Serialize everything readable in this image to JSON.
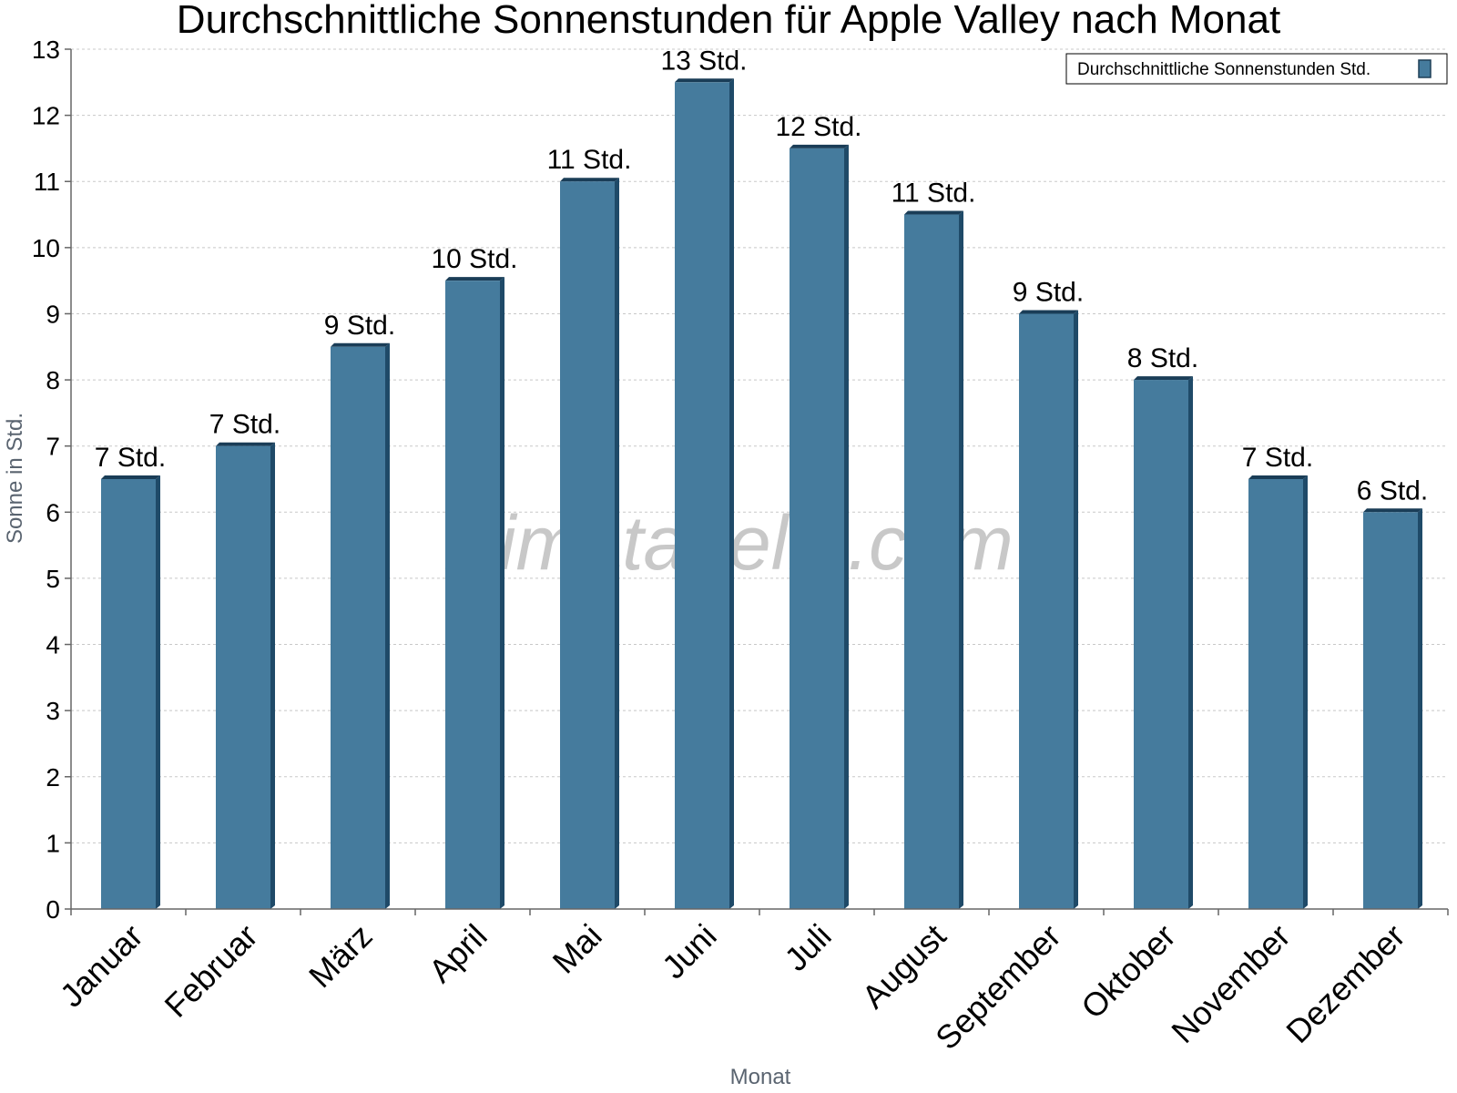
{
  "chart_data": {
    "type": "bar",
    "title": "Durchschnittliche Sonnenstunden für Apple Valley nach Monat",
    "xlabel": "Monat",
    "ylabel": "Sonne in Std.",
    "ylim": [
      0,
      13
    ],
    "yticks": [
      0,
      1,
      2,
      3,
      4,
      5,
      6,
      7,
      8,
      9,
      10,
      11,
      12,
      13
    ],
    "grid": true,
    "legend_position": "top-right",
    "categories": [
      "Januar",
      "Februar",
      "März",
      "April",
      "Mai",
      "Juni",
      "Juli",
      "August",
      "September",
      "Oktober",
      "November",
      "Dezember"
    ],
    "series": [
      {
        "name": "Durchschnittliche Sonnenstunden Std.",
        "color": "#457b9d",
        "values": [
          6.5,
          7,
          8.5,
          9.5,
          11,
          12.5,
          11.5,
          10.5,
          9,
          8,
          6.5,
          6
        ],
        "data_labels": [
          "7 Std.",
          "7 Std.",
          "9 Std.",
          "10 Std.",
          "11 Std.",
          "13 Std.",
          "12 Std.",
          "11 Std.",
          "9 Std.",
          "8 Std.",
          "7 Std.",
          "6 Std."
        ]
      }
    ],
    "watermark": "klimatabelle.com"
  }
}
